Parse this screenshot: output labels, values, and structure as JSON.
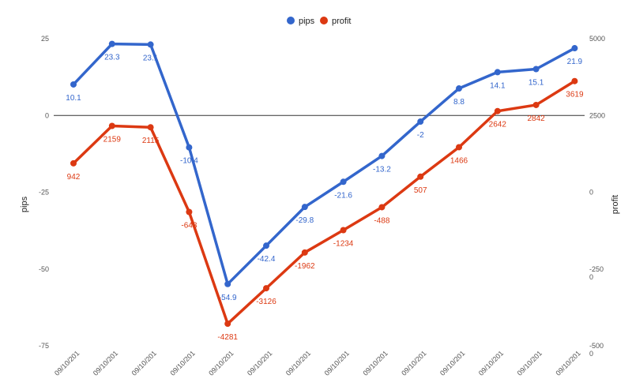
{
  "chart_data": {
    "type": "line",
    "categories": [
      "09/10/201",
      "09/10/201",
      "09/10/201",
      "09/10/201",
      "09/10/201",
      "09/10/201",
      "09/10/201",
      "09/10/201",
      "09/10/201",
      "09/10/201",
      "09/10/201",
      "09/10/201",
      "09/10/201",
      "09/10/201"
    ],
    "series": [
      {
        "name": "pips",
        "axis": "left",
        "color": "#3366cc",
        "values": [
          10.1,
          23.3,
          23.1,
          -10.4,
          -54.9,
          -42.4,
          -29.8,
          -21.6,
          -13.2,
          -2,
          8.8,
          14.1,
          15.1,
          21.9
        ],
        "labels": [
          "10.1",
          "23.3",
          "23.1",
          "-10.4",
          "-54.9",
          "-42.4",
          "-29.8",
          "-21.6",
          "-13.2",
          "-2",
          "8.8",
          "14.1",
          "15.1",
          "21.9"
        ]
      },
      {
        "name": "profit",
        "axis": "right",
        "color": "#dc3912",
        "values": [
          942,
          2159,
          2115,
          -643,
          -4281,
          -3126,
          -1962,
          -1234,
          -488,
          507,
          1466,
          2642,
          2842,
          3619
        ],
        "labels": [
          "942",
          "2159",
          "2115",
          "-643",
          "-4281",
          "-3126",
          "-1962",
          "-1234",
          "-488",
          "507",
          "1466",
          "2642",
          "2842",
          "3619"
        ]
      }
    ],
    "ylabel_left": "pips",
    "ylabel_right": "profit",
    "ylim_left": [
      -75,
      25
    ],
    "ylim_right": [
      -5000,
      5000
    ],
    "yticks_left": [
      "25",
      "0",
      "-25",
      "-50",
      "-75"
    ],
    "yticks_right": [
      "5000",
      "2500",
      "0",
      "-250\n0",
      "-500\n0"
    ],
    "legend": "top-center",
    "grid": false,
    "baseline_color": "#333333"
  }
}
